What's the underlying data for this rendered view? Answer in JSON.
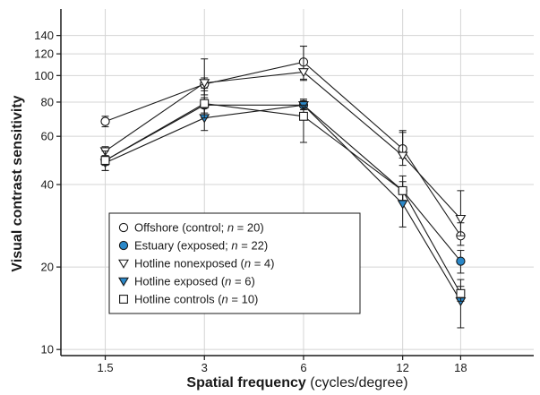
{
  "chart_data": {
    "type": "line",
    "x_scale": "log",
    "y_scale": "log",
    "xlabel_bold": "Spatial frequency",
    "xlabel_rest": " (cycles/degree)",
    "ylabel": "Visual contrast sensitivity",
    "x": [
      1.5,
      3,
      6,
      12,
      18
    ],
    "x_tick_labels": [
      "1.5",
      "3",
      "6",
      "12",
      "18"
    ],
    "xlim": [
      1.1,
      30
    ],
    "ylim": [
      9.5,
      175
    ],
    "y_ticks": [
      10,
      20,
      40,
      60,
      80,
      100,
      120,
      140
    ],
    "y_tick_labels": [
      "10",
      "20",
      "40",
      "60",
      "80",
      "100",
      "120",
      "140"
    ],
    "grid": true,
    "legend_position": "lower-left inside",
    "series": [
      {
        "name": "Offshore (control; n = 20)",
        "legend_parts": [
          "Offshore (control; ",
          "n",
          " = 20)"
        ],
        "marker": "circle-open",
        "values": [
          68,
          93,
          112,
          54,
          26
        ],
        "err_low": [
          65,
          88,
          97,
          50,
          24
        ],
        "err_high": [
          71,
          98,
          128,
          63,
          29
        ]
      },
      {
        "name": "Estuary (exposed; n = 22)",
        "legend_parts": [
          "Estuary (exposed; ",
          "n",
          " = 22)"
        ],
        "marker": "circle-filled",
        "values": [
          49,
          78,
          78,
          38,
          21
        ],
        "err_low": [
          47,
          73,
          75,
          35,
          19
        ],
        "err_high": [
          51,
          83,
          81,
          41,
          23
        ]
      },
      {
        "name": "Hotline nonexposed (n = 4)",
        "legend_parts": [
          "Hotline nonexposed (",
          "n",
          " = 4)"
        ],
        "marker": "triangle-open",
        "values": [
          53,
          94,
          103,
          51,
          30
        ],
        "err_low": [
          51,
          85,
          96,
          47,
          26
        ],
        "err_high": [
          55,
          115,
          128,
          62,
          38
        ]
      },
      {
        "name": "Hotline exposed (n = 6)",
        "legend_parts": [
          "Hotline exposed (",
          "n",
          " = 6)"
        ],
        "marker": "triangle-filled",
        "values": [
          48,
          70,
          78,
          34,
          15
        ],
        "err_low": [
          45,
          63,
          73,
          28,
          12
        ],
        "err_high": [
          50,
          76,
          82,
          38,
          17
        ]
      },
      {
        "name": "Hotline controls (n = 10)",
        "legend_parts": [
          "Hotline controls (",
          "n",
          " = 10)"
        ],
        "marker": "square-open",
        "values": [
          49,
          79,
          71,
          38,
          16
        ],
        "err_low": [
          45,
          70,
          57,
          35,
          15
        ],
        "err_high": [
          53,
          90,
          78,
          43,
          18
        ]
      }
    ],
    "colors": {
      "filled_marker": "#2a88c9",
      "lines": "#1a1a1a",
      "grid": "#d4d4d4",
      "plot_background": "#ffffff"
    }
  }
}
